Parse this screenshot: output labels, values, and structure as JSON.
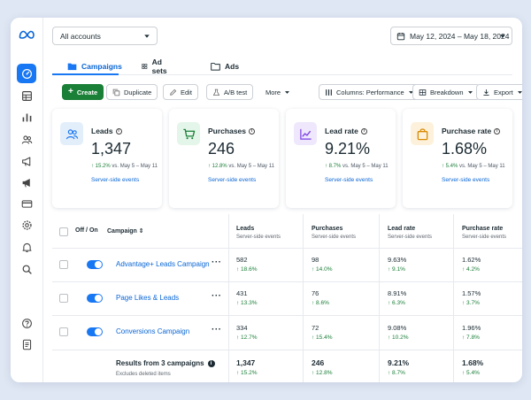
{
  "sidebar": {
    "logo": "meta-logo",
    "items": [
      "dashboard-icon",
      "grid-icon",
      "bar-chart-icon",
      "people-icon",
      "megaphone-icon",
      "megaphone-alt-icon",
      "card-icon",
      "settings-icon",
      "bell-icon",
      "search-icon",
      "help-icon",
      "document-icon"
    ]
  },
  "header": {
    "account_select": "All accounts",
    "date_range": "May 12, 2024 – May 18, 2024"
  },
  "tabs": [
    {
      "label": "Campaigns",
      "icon": "folder-filled-icon"
    },
    {
      "label": "Ad sets",
      "icon": "grid-icon"
    },
    {
      "label": "Ads",
      "icon": "folder-icon"
    }
  ],
  "toolbar": {
    "create": "Create",
    "duplicate": "Duplicate",
    "edit": "Edit",
    "ab_test": "A/B test",
    "more": "More",
    "columns": "Columns: Performance",
    "breakdown": "Breakdown",
    "export": "Export"
  },
  "cards": [
    {
      "label": "Leads",
      "value": "1,347",
      "change": "↑ 15.2%",
      "compare": "vs. May 5 – May 11",
      "source": "Server-side events",
      "icon": "people-icon",
      "color": "#e3eefb"
    },
    {
      "label": "Purchases",
      "value": "246",
      "change": "↑ 12.8%",
      "compare": "vs. May 5 – May 11",
      "source": "Server-side events",
      "icon": "cart-icon",
      "color": "#e4f5e9"
    },
    {
      "label": "Lead rate",
      "value": "9.21%",
      "change": "↑ 8.7%",
      "compare": "vs. May 5 – May 11",
      "source": "Server-side events",
      "icon": "trend-chart-icon",
      "color": "#efe7fb"
    },
    {
      "label": "Purchase rate",
      "value": "1.68%",
      "change": "↑ 5.4%",
      "compare": "vs. May 5 – May 11",
      "source": "Server-side events",
      "icon": "bag-icon",
      "color": "#fdf1dc"
    }
  ],
  "table": {
    "headers": {
      "offon": "Off / On",
      "campaign": "Campaign ⇕",
      "leads": "Leads",
      "purchases": "Purchases",
      "lead_rate": "Lead rate",
      "purchase_rate": "Purchase rate",
      "sub": "Server-side events"
    },
    "rows": [
      {
        "name": "Advantage+ Leads Campaign",
        "leads": "582",
        "leads_chg": "↑ 18.6%",
        "purchases": "98",
        "purchases_chg": "↑ 14.0%",
        "lead_rate": "9.63%",
        "lead_rate_chg": "↑ 9.1%",
        "purchase_rate": "1.62%",
        "purchase_rate_chg": "↑ 4.2%"
      },
      {
        "name": "Page Likes & Leads",
        "leads": "431",
        "leads_chg": "↑ 13.3%",
        "purchases": "76",
        "purchases_chg": "↑ 8.6%",
        "lead_rate": "8.91%",
        "lead_rate_chg": "↑ 6.3%",
        "purchase_rate": "1.57%",
        "purchase_rate_chg": "↑ 3.7%"
      },
      {
        "name": "Conversions Campaign",
        "leads": "334",
        "leads_chg": "↑ 12.7%",
        "purchases": "72",
        "purchases_chg": "↑ 15.4%",
        "lead_rate": "9.08%",
        "lead_rate_chg": "↑ 10.2%",
        "purchase_rate": "1.96%",
        "purchase_rate_chg": "↑ 7.8%"
      }
    ],
    "totals": {
      "title": "Results from 3 campaigns",
      "subtitle": "Excludes deleted items",
      "leads": "1,347",
      "leads_chg": "↑ 15.2%",
      "purchases": "246",
      "purchases_chg": "↑ 12.8%",
      "lead_rate": "9.21%",
      "lead_rate_chg": "↑ 8.7%",
      "purchase_rate": "1.68%",
      "purchase_rate_chg": "↑ 5.4%"
    }
  },
  "colors": {
    "accent": "#1877f2",
    "create_green": "#1a7f37",
    "link": "#0a66d6",
    "positive": "#1a7f37"
  }
}
